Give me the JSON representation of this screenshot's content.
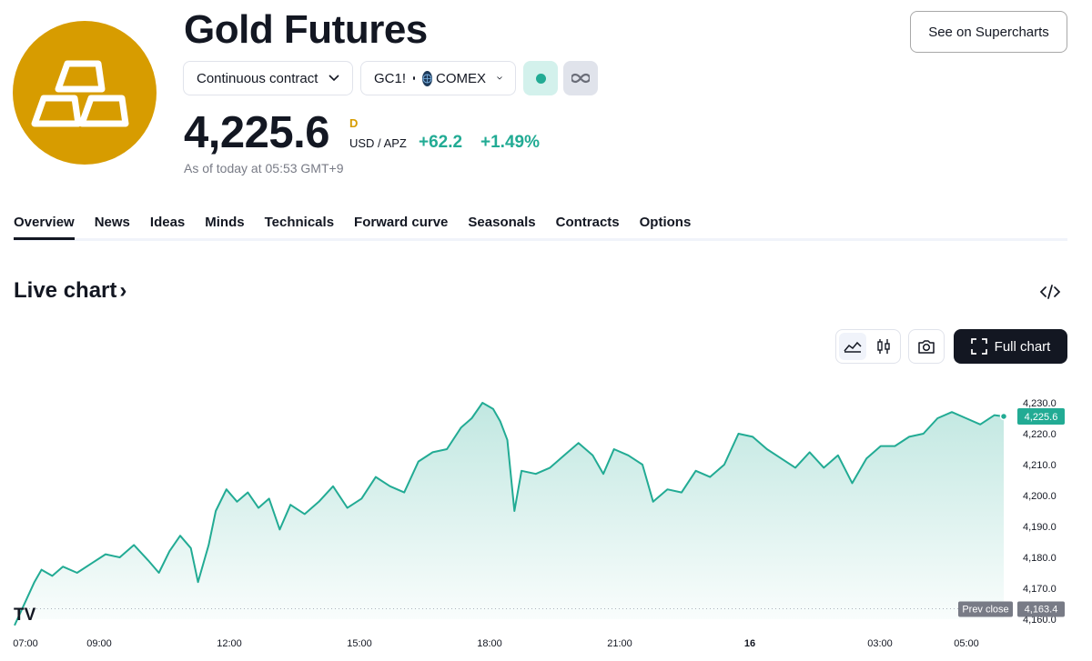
{
  "header": {
    "title": "Gold Futures",
    "supercharts_label": "See on Supercharts",
    "contract_label": "Continuous contract",
    "symbol": "GC1!",
    "exchange": "COMEX",
    "logo_icon": "gold-bars-icon",
    "logo_color": "#d79c00"
  },
  "quote": {
    "price": "4,225.6",
    "delay_badge": "D",
    "currency": "USD / APZ",
    "change": "+62.2",
    "change_pct": "+1.49%",
    "as_of": "As of today at 05:53 GMT+9",
    "up_color": "#22ab94"
  },
  "tabs": [
    {
      "label": "Overview",
      "active": true
    },
    {
      "label": "News"
    },
    {
      "label": "Ideas"
    },
    {
      "label": "Minds"
    },
    {
      "label": "Technicals"
    },
    {
      "label": "Forward curve"
    },
    {
      "label": "Seasonals"
    },
    {
      "label": "Contracts"
    },
    {
      "label": "Options"
    }
  ],
  "section": {
    "title": "Live chart",
    "title_arrow": "›",
    "full_chart_label": "Full chart"
  },
  "chart_data": {
    "type": "area",
    "line_color": "#22ab94",
    "x_tick_labels": [
      "07:00",
      "09:00",
      "12:00",
      "15:00",
      "18:00",
      "21:00",
      "16",
      "03:00",
      "05:00"
    ],
    "y_tick_labels": [
      "4,230.0",
      "4,220.0",
      "4,210.0",
      "4,200.0",
      "4,190.0",
      "4,180.0",
      "4,170.0",
      "4,160.0"
    ],
    "ylim": [
      4160,
      4230
    ],
    "last_price_label": "4,225.6",
    "last_price": 4225.6,
    "prev_close_text": "Prev close",
    "prev_close_label": "4,163.4",
    "prev_close": 4163.4,
    "watermark": "TV",
    "points": [
      [
        "07:00",
        4158
      ],
      [
        "07:10",
        4172
      ],
      [
        "07:20",
        4176
      ],
      [
        "07:35",
        4174
      ],
      [
        "07:50",
        4177
      ],
      [
        "08:10",
        4175
      ],
      [
        "08:30",
        4178
      ],
      [
        "08:50",
        4181
      ],
      [
        "09:10",
        4180
      ],
      [
        "09:30",
        4184
      ],
      [
        "09:50",
        4179
      ],
      [
        "10:05",
        4175
      ],
      [
        "10:20",
        4182
      ],
      [
        "10:35",
        4187
      ],
      [
        "10:50",
        4183
      ],
      [
        "11:00",
        4172
      ],
      [
        "11:15",
        4184
      ],
      [
        "11:25",
        4195
      ],
      [
        "11:40",
        4202
      ],
      [
        "11:55",
        4198
      ],
      [
        "12:10",
        4201
      ],
      [
        "12:25",
        4196
      ],
      [
        "12:40",
        4199
      ],
      [
        "12:55",
        4189
      ],
      [
        "13:10",
        4197
      ],
      [
        "13:30",
        4194
      ],
      [
        "13:50",
        4198
      ],
      [
        "14:10",
        4203
      ],
      [
        "14:30",
        4196
      ],
      [
        "14:50",
        4199
      ],
      [
        "15:10",
        4206
      ],
      [
        "15:30",
        4203
      ],
      [
        "15:50",
        4201
      ],
      [
        "16:10",
        4211
      ],
      [
        "16:30",
        4214
      ],
      [
        "16:50",
        4215
      ],
      [
        "17:10",
        4222
      ],
      [
        "17:25",
        4225
      ],
      [
        "17:40",
        4230
      ],
      [
        "17:55",
        4228
      ],
      [
        "18:05",
        4224
      ],
      [
        "18:15",
        4218
      ],
      [
        "18:25",
        4195
      ],
      [
        "18:35",
        4208
      ],
      [
        "18:55",
        4207
      ],
      [
        "19:15",
        4209
      ],
      [
        "19:35",
        4213
      ],
      [
        "19:55",
        4217
      ],
      [
        "20:15",
        4213
      ],
      [
        "20:30",
        4207
      ],
      [
        "20:45",
        4215
      ],
      [
        "21:05",
        4213
      ],
      [
        "21:25",
        4210
      ],
      [
        "21:40",
        4198
      ],
      [
        "22:00",
        4202
      ],
      [
        "22:20",
        4201
      ],
      [
        "22:40",
        4208
      ],
      [
        "23:00",
        4206
      ],
      [
        "23:20",
        4210
      ],
      [
        "23:40",
        4220
      ],
      [
        "00:00",
        4219
      ],
      [
        "00:20",
        4215
      ],
      [
        "00:40",
        4212
      ],
      [
        "01:00",
        4209
      ],
      [
        "01:20",
        4214
      ],
      [
        "01:40",
        4209
      ],
      [
        "02:00",
        4213
      ],
      [
        "02:20",
        4204
      ],
      [
        "02:40",
        4212
      ],
      [
        "03:00",
        4216
      ],
      [
        "03:20",
        4216
      ],
      [
        "03:40",
        4219
      ],
      [
        "04:00",
        4220
      ],
      [
        "04:20",
        4225
      ],
      [
        "04:40",
        4227
      ],
      [
        "05:00",
        4225
      ],
      [
        "05:20",
        4223
      ],
      [
        "05:40",
        4226
      ],
      [
        "05:53",
        4225.6
      ]
    ]
  }
}
